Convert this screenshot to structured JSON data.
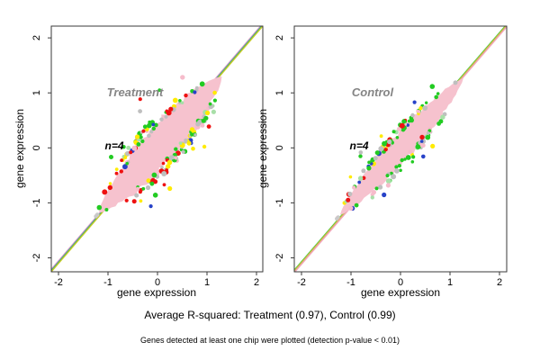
{
  "figure": {
    "background": "#FFFFFF",
    "frame_color": "#3a3a3a"
  },
  "captions": {
    "r_squared_line": "Average R-squared: Treatment (0.97), Control (0.99)",
    "detection_note": "Genes detected at least one chip were plotted (detection p-value < 0.01)"
  },
  "chart_data": [
    {
      "type": "scatter",
      "title": "Treatment",
      "annotation": "n=4",
      "xlabel": "gene expression",
      "ylabel": "gene expression",
      "xlim": [
        -2.15,
        2.13
      ],
      "ylim": [
        -2.25,
        2.21
      ],
      "xticks": [
        -2,
        -1,
        0,
        1,
        2
      ],
      "yticks": [
        -2,
        -1,
        0,
        1,
        2
      ],
      "grid": false,
      "r_squared": 0.97,
      "n_chips": 4,
      "density_lens": {
        "from": [
          -1.18,
          -1.18
        ],
        "to": [
          1.3,
          1.3
        ],
        "max_halfwidth": 0.34,
        "fill": "#F6C2CE"
      },
      "identity_lines": [
        {
          "color": "#F2A9BE",
          "dy": -3
        },
        {
          "color": "#7B86DC",
          "dy": -2
        },
        {
          "color": "#44C444",
          "dy": -1
        },
        {
          "color": "#C9C929",
          "dy": 0
        }
      ],
      "dot_palette": [
        {
          "color": "#EE1111",
          "w": 0.21
        },
        {
          "color": "#FFEB00",
          "w": 0.17
        },
        {
          "color": "#22CB22",
          "w": 0.25
        },
        {
          "color": "#BFBFBF",
          "w": 0.2
        },
        {
          "color": "#2742C8",
          "w": 0.05
        },
        {
          "color": "#F6BCCB",
          "w": 0.08
        },
        {
          "color": "#A8DFA8",
          "w": 0.04
        }
      ],
      "edge_dot_count": 150,
      "stray_dot_count": 16,
      "seed": 7
    },
    {
      "type": "scatter",
      "title": "Control",
      "annotation": "n=4",
      "xlabel": "gene expression",
      "ylabel": "gene expression",
      "xlim": [
        -2.15,
        2.13
      ],
      "ylim": [
        -2.25,
        2.21
      ],
      "xticks": [
        -2,
        -1,
        0,
        1,
        2
      ],
      "yticks": [
        -2,
        -1,
        0,
        1,
        2
      ],
      "grid": false,
      "r_squared": 0.99,
      "n_chips": 4,
      "density_lens": {
        "from": [
          -1.22,
          -1.22
        ],
        "to": [
          1.27,
          1.27
        ],
        "max_halfwidth": 0.23,
        "fill": "#F6C2CE"
      },
      "identity_lines": [
        {
          "color": "#44C444",
          "dy": -2
        },
        {
          "color": "#C9C929",
          "dy": -1
        },
        {
          "color": "#D8A56F",
          "dy": 0
        },
        {
          "color": "#F2A9BE",
          "dy": 1
        }
      ],
      "dot_palette": [
        {
          "color": "#22CB22",
          "w": 0.34
        },
        {
          "color": "#BFBFBF",
          "w": 0.22
        },
        {
          "color": "#F6BCCB",
          "w": 0.15
        },
        {
          "color": "#EE1111",
          "w": 0.09
        },
        {
          "color": "#2742C8",
          "w": 0.08
        },
        {
          "color": "#FFEB00",
          "w": 0.07
        },
        {
          "color": "#A8DFA8",
          "w": 0.05
        }
      ],
      "edge_dot_count": 120,
      "stray_dot_count": 12,
      "seed": 11
    }
  ]
}
